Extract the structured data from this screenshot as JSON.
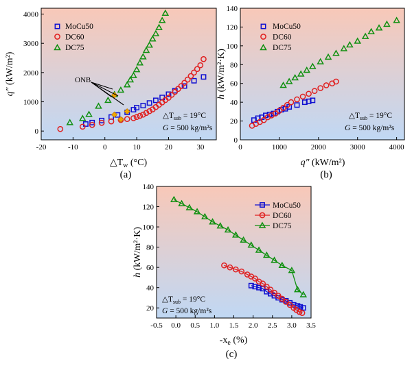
{
  "conditions": {
    "dt_label": "△T",
    "dt_sub": "sub",
    "dt_value": " = 19°C",
    "g_label": "G",
    "g_value": " = 500 kg/m²s"
  },
  "colors": {
    "mocu50": "#1010d0",
    "dc60": "#e02020",
    "dc75": "#109010",
    "onb": "#f0a800",
    "bg_top": "#f8c8b8",
    "bg_bottom": "#c0d8f4"
  },
  "chart_data": [
    {
      "id": "a",
      "type": "scatter",
      "panel_label": "(a)",
      "title": "",
      "xlabel": {
        "main": "△T",
        "sub": "w",
        "unit": " (°C)"
      },
      "ylabel": {
        "main": "q″",
        "unit": " (kW/m²)"
      },
      "xlim": [
        -20,
        35
      ],
      "ylim": [
        -300,
        4200
      ],
      "xticks": [
        "-20",
        "-10",
        "0",
        "10",
        "20",
        "30"
      ],
      "yticks": [
        "0",
        "1000",
        "2000",
        "3000",
        "4000"
      ],
      "annotation": "ONB",
      "legend": [
        "MoCu50",
        "DC60",
        "DC75"
      ],
      "series": [
        {
          "name": "MoCu50",
          "x": [
            -6,
            -4,
            -1,
            2,
            4,
            7,
            9,
            10,
            12,
            14,
            16,
            18,
            20,
            22,
            25,
            28,
            31
          ],
          "y": [
            240,
            290,
            360,
            480,
            550,
            640,
            730,
            800,
            870,
            960,
            1050,
            1150,
            1260,
            1380,
            1540,
            1720,
            1850
          ]
        },
        {
          "name": "DC60",
          "x": [
            -14,
            -7,
            -4,
            -1,
            2,
            5,
            7,
            9,
            10,
            11,
            12,
            13,
            14,
            15,
            16,
            17,
            18,
            19,
            20,
            21,
            22,
            23,
            24,
            25,
            26,
            27,
            28,
            29,
            30,
            31
          ],
          "y": [
            70,
            150,
            210,
            280,
            330,
            380,
            410,
            440,
            480,
            520,
            560,
            620,
            680,
            740,
            820,
            900,
            980,
            1060,
            1140,
            1240,
            1340,
            1440,
            1540,
            1650,
            1760,
            1880,
            2000,
            2120,
            2250,
            2460
          ]
        },
        {
          "name": "DC75",
          "x": [
            -11,
            -7,
            -5,
            -2,
            1,
            3,
            5,
            7,
            8,
            9,
            10,
            11,
            12,
            13,
            14,
            15,
            16,
            17,
            18,
            19
          ],
          "y": [
            290,
            430,
            570,
            850,
            1050,
            1250,
            1400,
            1580,
            1750,
            1900,
            2100,
            2330,
            2540,
            2760,
            2940,
            3150,
            3330,
            3540,
            3780,
            4030
          ]
        },
        {
          "name": "ONB",
          "x": [
            3,
            5,
            7,
            3
          ],
          "y": [
            560,
            400,
            670,
            1230
          ]
        }
      ]
    },
    {
      "id": "b",
      "type": "scatter",
      "panel_label": "(b)",
      "title": "",
      "xlabel": {
        "main": "q″",
        "unit": " (kW/m²)"
      },
      "ylabel": {
        "main": "h",
        "unit": " (kW/m²·K)"
      },
      "xlim": [
        0,
        4200
      ],
      "ylim": [
        0,
        140
      ],
      "xticks": [
        "0",
        "1000",
        "2000",
        "3000",
        "4000"
      ],
      "yticks": [
        "0",
        "20",
        "40",
        "60",
        "80",
        "100",
        "120",
        "140"
      ],
      "legend": [
        "MoCu50",
        "DC60",
        "DC75"
      ],
      "series": [
        {
          "name": "MoCu50",
          "x": [
            350,
            450,
            550,
            650,
            750,
            850,
            950,
            1050,
            1150,
            1250,
            1450,
            1650,
            1750,
            1850
          ],
          "y": [
            21,
            23,
            24,
            26,
            27,
            28,
            30,
            32,
            33,
            35,
            37,
            40,
            41,
            42
          ]
        },
        {
          "name": "DC60",
          "x": [
            300,
            400,
            500,
            600,
            700,
            800,
            900,
            1000,
            1100,
            1200,
            1300,
            1450,
            1600,
            1750,
            1900,
            2050,
            2200,
            2350,
            2450
          ],
          "y": [
            15,
            17,
            19,
            21,
            24,
            26,
            28,
            31,
            34,
            37,
            40,
            43,
            46,
            49,
            52,
            55,
            58,
            60,
            62
          ]
        },
        {
          "name": "DC75",
          "x": [
            1100,
            1250,
            1400,
            1550,
            1700,
            1850,
            2050,
            2250,
            2450,
            2650,
            2800,
            3000,
            3200,
            3350,
            3550,
            3750,
            4000
          ],
          "y": [
            58,
            62,
            66,
            70,
            74,
            78,
            83,
            88,
            92,
            97,
            101,
            105,
            110,
            115,
            119,
            123,
            127
          ]
        }
      ]
    },
    {
      "id": "c",
      "type": "line",
      "panel_label": "(c)",
      "title": "",
      "xlabel": {
        "main": "-x",
        "sub": "e",
        "unit": " (%)"
      },
      "ylabel": {
        "main": "h",
        "unit": " (kW/m²·K)"
      },
      "xlim": [
        -0.5,
        3.5
      ],
      "ylim": [
        10,
        140
      ],
      "xticks": [
        "-0.5",
        "0.0",
        "0.5",
        "1.0",
        "1.5",
        "2.0",
        "2.5",
        "3.0",
        "3.5"
      ],
      "yticks": [
        "20",
        "40",
        "60",
        "80",
        "100",
        "120",
        "140"
      ],
      "legend": [
        "MoCu50",
        "DC60",
        "DC75"
      ],
      "series": [
        {
          "name": "MoCu50",
          "x": [
            1.95,
            2.05,
            2.15,
            2.25,
            2.35,
            2.45,
            2.55,
            2.65,
            2.75,
            2.85,
            2.95,
            3.05,
            3.15,
            3.22,
            3.3
          ],
          "y": [
            42,
            41,
            40,
            39,
            36,
            34,
            32,
            30,
            28,
            27,
            25,
            23,
            22,
            21,
            20
          ]
        },
        {
          "name": "DC60",
          "x": [
            1.25,
            1.4,
            1.55,
            1.7,
            1.85,
            1.95,
            2.05,
            2.15,
            2.25,
            2.35,
            2.45,
            2.55,
            2.65,
            2.75,
            2.85,
            2.95,
            3.05,
            3.12,
            3.2,
            3.27
          ],
          "y": [
            62,
            60,
            58,
            56,
            53,
            51,
            49,
            46,
            44,
            41,
            38,
            35,
            32,
            29,
            26,
            23,
            20,
            18,
            16,
            15
          ]
        },
        {
          "name": "DC75",
          "x": [
            -0.05,
            0.15,
            0.35,
            0.55,
            0.75,
            0.95,
            1.15,
            1.35,
            1.55,
            1.75,
            1.95,
            2.15,
            2.35,
            2.55,
            2.75,
            3.0,
            3.15,
            3.3
          ],
          "y": [
            127,
            123,
            119,
            115,
            110,
            105,
            101,
            97,
            92,
            87,
            82,
            77,
            72,
            67,
            62,
            57,
            38,
            33
          ]
        }
      ]
    }
  ]
}
